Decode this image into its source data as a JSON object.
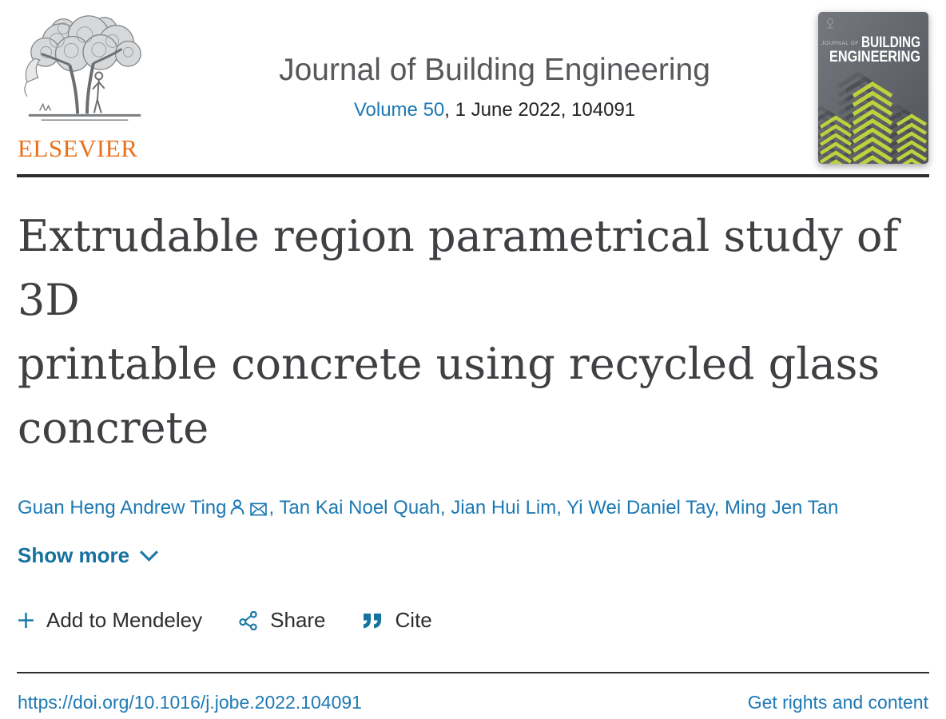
{
  "header": {
    "publisher_label": "ELSEVIER",
    "journal_title": "Journal of Building Engineering",
    "volume_link": "Volume 50",
    "issue_info": ", 1 June 2022, 104091",
    "cover": {
      "kicker": "JOURNAL OF",
      "title_line1": "BUILDING",
      "title_line2": "ENGINEERING"
    }
  },
  "article": {
    "title": "Extrudable region parametrical study of 3D printable concrete using recycled glass concrete",
    "authors": [
      "Guan Heng Andrew Ting",
      "Tan Kai Noel Quah",
      "Jian Hui Lim",
      "Yi Wei Daniel Tay",
      "Ming Jen Tan"
    ],
    "corresponding_author": "Guan Heng Andrew Ting",
    "show_more_label": "Show more"
  },
  "actions": {
    "add_to_mendeley_label": "Add to Mendeley",
    "share_label": "Share",
    "cite_label": "Cite"
  },
  "footer_links": {
    "doi": "https://doi.org/10.1016/j.jobe.2022.104091",
    "rights_label": "Get rights and content"
  },
  "colors": {
    "link_blue": "#1d79b4",
    "elsevier_orange": "#e9711c",
    "cover_green": "#bdd13e",
    "rule_dark": "#2c2e30"
  }
}
